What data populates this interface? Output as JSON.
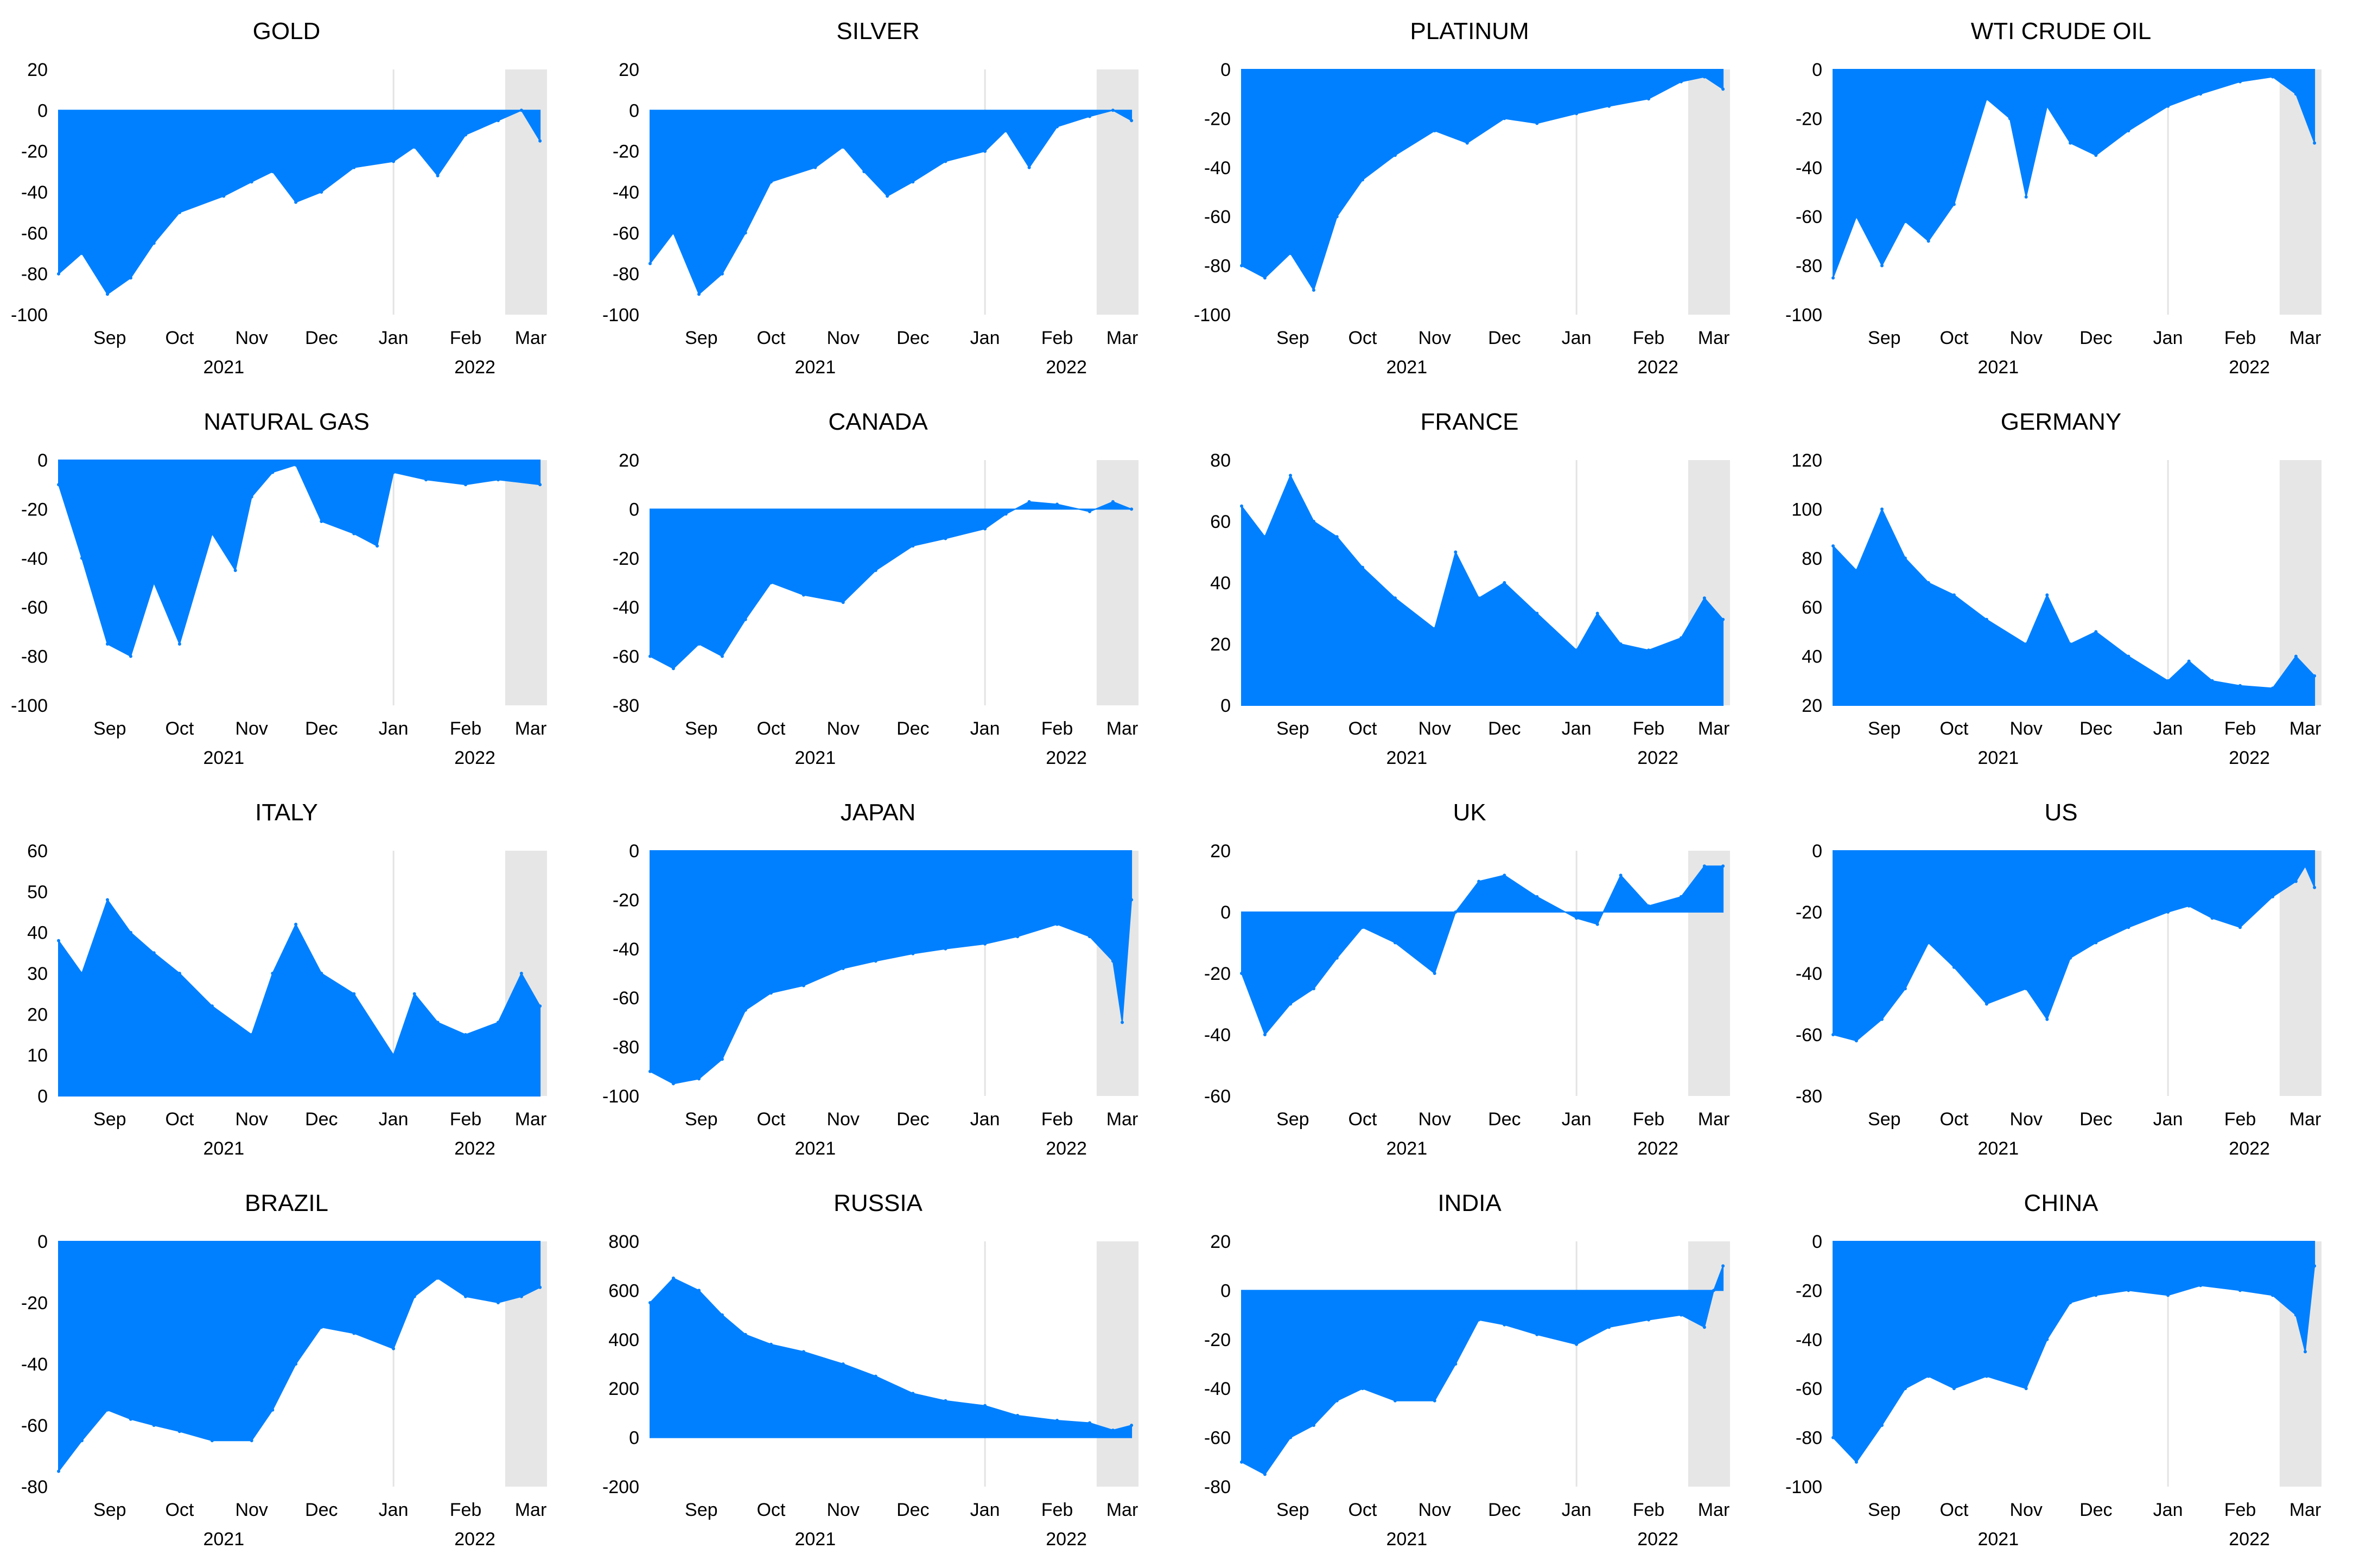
{
  "colors": {
    "area": "#0080FF",
    "shade": "#E6E6E6",
    "grid": "#E3E3E3"
  },
  "chart_data": [
    {
      "type": "area",
      "title": "GOLD",
      "ylim": [
        -100,
        20
      ],
      "yticks": [
        "20",
        "0",
        "-20",
        "-40",
        "-60",
        "-80",
        "-100"
      ],
      "months": [
        "Sep",
        "Oct",
        "Nov",
        "Dec",
        "Jan",
        "Feb",
        "Mar"
      ],
      "years": [
        "2021",
        "2022"
      ],
      "shaded_from": "2022-02-18",
      "x": [
        "2021-08-10",
        "2021-08-20",
        "2021-08-31",
        "2021-09-10",
        "2021-09-20",
        "2021-10-01",
        "2021-10-20",
        "2021-11-01",
        "2021-11-10",
        "2021-11-20",
        "2021-12-01",
        "2021-12-15",
        "2022-01-01",
        "2022-01-10",
        "2022-01-20",
        "2022-02-01",
        "2022-02-15",
        "2022-02-25",
        "2022-03-05"
      ],
      "y": [
        -80,
        -70,
        -90,
        -82,
        -65,
        -50,
        -42,
        -35,
        -30,
        -45,
        -40,
        -28,
        -25,
        -18,
        -32,
        -12,
        -5,
        0,
        -15
      ]
    },
    {
      "type": "area",
      "title": "SILVER",
      "ylim": [
        -100,
        20
      ],
      "yticks": [
        "20",
        "0",
        "-20",
        "-40",
        "-60",
        "-80",
        "-100"
      ],
      "months": [
        "Sep",
        "Oct",
        "Nov",
        "Dec",
        "Jan",
        "Feb",
        "Mar"
      ],
      "years": [
        "2021",
        "2022"
      ],
      "shaded_from": "2022-02-18",
      "x": [
        "2021-08-10",
        "2021-08-20",
        "2021-08-31",
        "2021-09-10",
        "2021-09-20",
        "2021-10-01",
        "2021-10-20",
        "2021-11-01",
        "2021-11-10",
        "2021-11-20",
        "2021-12-01",
        "2021-12-15",
        "2022-01-01",
        "2022-01-10",
        "2022-01-20",
        "2022-02-01",
        "2022-02-15",
        "2022-02-25",
        "2022-03-05"
      ],
      "y": [
        -75,
        -60,
        -90,
        -80,
        -60,
        -35,
        -28,
        -18,
        -30,
        -42,
        -35,
        -25,
        -20,
        -10,
        -28,
        -8,
        -3,
        0,
        -5
      ]
    },
    {
      "type": "area",
      "title": "PLATINUM",
      "ylim": [
        -100,
        0
      ],
      "yticks": [
        "0",
        "-20",
        "-40",
        "-60",
        "-80",
        "-100"
      ],
      "months": [
        "Sep",
        "Oct",
        "Nov",
        "Dec",
        "Jan",
        "Feb",
        "Mar"
      ],
      "years": [
        "2021",
        "2022"
      ],
      "shaded_from": "2022-02-18",
      "x": [
        "2021-08-10",
        "2021-08-20",
        "2021-08-31",
        "2021-09-10",
        "2021-09-20",
        "2021-10-01",
        "2021-10-15",
        "2021-11-01",
        "2021-11-15",
        "2021-12-01",
        "2021-12-15",
        "2022-01-01",
        "2022-01-15",
        "2022-02-01",
        "2022-02-15",
        "2022-02-25",
        "2022-03-05"
      ],
      "y": [
        -80,
        -85,
        -75,
        -90,
        -60,
        -45,
        -35,
        -25,
        -30,
        -20,
        -22,
        -18,
        -15,
        -12,
        -5,
        -3,
        -8
      ]
    },
    {
      "type": "area",
      "title": "WTI CRUDE OIL",
      "ylim": [
        -100,
        0
      ],
      "yticks": [
        "0",
        "-20",
        "-40",
        "-60",
        "-80",
        "-100"
      ],
      "months": [
        "Sep",
        "Oct",
        "Nov",
        "Dec",
        "Jan",
        "Feb",
        "Mar"
      ],
      "years": [
        "2021",
        "2022"
      ],
      "shaded_from": "2022-02-18",
      "x": [
        "2021-08-10",
        "2021-08-20",
        "2021-08-31",
        "2021-09-10",
        "2021-09-20",
        "2021-10-01",
        "2021-10-15",
        "2021-10-25",
        "2021-11-01",
        "2021-11-10",
        "2021-11-20",
        "2021-12-01",
        "2021-12-15",
        "2022-01-01",
        "2022-01-15",
        "2022-02-01",
        "2022-02-15",
        "2022-02-25",
        "2022-03-05"
      ],
      "y": [
        -85,
        -60,
        -80,
        -62,
        -70,
        -55,
        -12,
        -20,
        -52,
        -15,
        -30,
        -35,
        -25,
        -15,
        -10,
        -5,
        -3,
        -10,
        -30
      ]
    },
    {
      "type": "area",
      "title": "NATURAL GAS",
      "ylim": [
        -100,
        0
      ],
      "yticks": [
        "0",
        "-20",
        "-40",
        "-60",
        "-80",
        "-100"
      ],
      "months": [
        "Sep",
        "Oct",
        "Nov",
        "Dec",
        "Jan",
        "Feb",
        "Mar"
      ],
      "years": [
        "2021",
        "2022"
      ],
      "shaded_from": "2022-02-18",
      "x": [
        "2021-08-10",
        "2021-08-20",
        "2021-08-31",
        "2021-09-10",
        "2021-09-20",
        "2021-10-01",
        "2021-10-15",
        "2021-10-25",
        "2021-11-01",
        "2021-11-10",
        "2021-11-20",
        "2021-12-01",
        "2021-12-15",
        "2021-12-25",
        "2022-01-01",
        "2022-01-15",
        "2022-02-01",
        "2022-02-15",
        "2022-03-05"
      ],
      "y": [
        -10,
        -40,
        -75,
        -80,
        -50,
        -75,
        -30,
        -45,
        -15,
        -5,
        -2,
        -25,
        -30,
        -35,
        -5,
        -8,
        -10,
        -8,
        -10
      ]
    },
    {
      "type": "area",
      "title": "CANADA",
      "ylim": [
        -80,
        20
      ],
      "yticks": [
        "20",
        "0",
        "-20",
        "-40",
        "-60",
        "-80"
      ],
      "months": [
        "Sep",
        "Oct",
        "Nov",
        "Dec",
        "Jan",
        "Feb",
        "Mar"
      ],
      "years": [
        "2021",
        "2022"
      ],
      "shaded_from": "2022-02-18",
      "x": [
        "2021-08-10",
        "2021-08-20",
        "2021-08-31",
        "2021-09-10",
        "2021-09-20",
        "2021-10-01",
        "2021-10-15",
        "2021-11-01",
        "2021-11-15",
        "2021-12-01",
        "2021-12-15",
        "2022-01-01",
        "2022-01-10",
        "2022-01-20",
        "2022-02-01",
        "2022-02-15",
        "2022-02-25",
        "2022-03-05"
      ],
      "y": [
        -60,
        -65,
        -55,
        -60,
        -45,
        -30,
        -35,
        -38,
        -25,
        -15,
        -12,
        -8,
        -2,
        3,
        2,
        -1,
        3,
        0
      ]
    },
    {
      "type": "area",
      "title": "FRANCE",
      "ylim": [
        0,
        80
      ],
      "yticks": [
        "80",
        "60",
        "40",
        "20",
        "0"
      ],
      "months": [
        "Sep",
        "Oct",
        "Nov",
        "Dec",
        "Jan",
        "Feb",
        "Mar"
      ],
      "years": [
        "2021",
        "2022"
      ],
      "shaded_from": "2022-02-18",
      "x": [
        "2021-08-10",
        "2021-08-20",
        "2021-08-31",
        "2021-09-10",
        "2021-09-20",
        "2021-10-01",
        "2021-10-15",
        "2021-11-01",
        "2021-11-10",
        "2021-11-20",
        "2021-12-01",
        "2021-12-15",
        "2022-01-01",
        "2022-01-10",
        "2022-01-20",
        "2022-02-01",
        "2022-02-15",
        "2022-02-25",
        "2022-03-05"
      ],
      "y": [
        65,
        55,
        75,
        60,
        55,
        45,
        35,
        25,
        50,
        35,
        40,
        30,
        18,
        30,
        20,
        18,
        22,
        35,
        28
      ]
    },
    {
      "type": "area",
      "title": "GERMANY",
      "ylim": [
        20,
        120
      ],
      "yticks": [
        "120",
        "100",
        "80",
        "60",
        "40",
        "20"
      ],
      "months": [
        "Sep",
        "Oct",
        "Nov",
        "Dec",
        "Jan",
        "Feb",
        "Mar"
      ],
      "years": [
        "2021",
        "2022"
      ],
      "shaded_from": "2022-02-18",
      "x": [
        "2021-08-10",
        "2021-08-20",
        "2021-08-31",
        "2021-09-10",
        "2021-09-20",
        "2021-10-01",
        "2021-10-15",
        "2021-11-01",
        "2021-11-10",
        "2021-11-20",
        "2021-12-01",
        "2021-12-15",
        "2022-01-01",
        "2022-01-10",
        "2022-01-20",
        "2022-02-01",
        "2022-02-15",
        "2022-02-25",
        "2022-03-05"
      ],
      "y": [
        85,
        75,
        100,
        80,
        70,
        65,
        55,
        45,
        65,
        45,
        50,
        40,
        30,
        38,
        30,
        28,
        27,
        40,
        32
      ]
    },
    {
      "type": "area",
      "title": "ITALY",
      "ylim": [
        0,
        60
      ],
      "yticks": [
        "60",
        "50",
        "40",
        "30",
        "20",
        "10",
        "0"
      ],
      "months": [
        "Sep",
        "Oct",
        "Nov",
        "Dec",
        "Jan",
        "Feb",
        "Mar"
      ],
      "years": [
        "2021",
        "2022"
      ],
      "shaded_from": "2022-02-18",
      "x": [
        "2021-08-10",
        "2021-08-20",
        "2021-08-31",
        "2021-09-10",
        "2021-09-20",
        "2021-10-01",
        "2021-10-15",
        "2021-11-01",
        "2021-11-10",
        "2021-11-20",
        "2021-12-01",
        "2021-12-15",
        "2022-01-01",
        "2022-01-10",
        "2022-01-20",
        "2022-02-01",
        "2022-02-15",
        "2022-02-25",
        "2022-03-05"
      ],
      "y": [
        38,
        30,
        48,
        40,
        35,
        30,
        22,
        15,
        30,
        42,
        30,
        25,
        10,
        25,
        18,
        15,
        18,
        30,
        22
      ]
    },
    {
      "type": "area",
      "title": "JAPAN",
      "ylim": [
        -100,
        0
      ],
      "yticks": [
        "0",
        "-20",
        "-40",
        "-60",
        "-80",
        "-100"
      ],
      "months": [
        "Sep",
        "Oct",
        "Nov",
        "Dec",
        "Jan",
        "Feb",
        "Mar"
      ],
      "years": [
        "2021",
        "2022"
      ],
      "shaded_from": "2022-02-18",
      "x": [
        "2021-08-10",
        "2021-08-20",
        "2021-08-31",
        "2021-09-10",
        "2021-09-20",
        "2021-10-01",
        "2021-10-15",
        "2021-11-01",
        "2021-11-15",
        "2021-12-01",
        "2021-12-15",
        "2022-01-01",
        "2022-01-15",
        "2022-02-01",
        "2022-02-15",
        "2022-02-25",
        "2022-03-01",
        "2022-03-05"
      ],
      "y": [
        -90,
        -95,
        -93,
        -85,
        -65,
        -58,
        -55,
        -48,
        -45,
        -42,
        -40,
        -38,
        -35,
        -30,
        -35,
        -45,
        -70,
        -20
      ]
    },
    {
      "type": "area",
      "title": "UK",
      "ylim": [
        -60,
        20
      ],
      "yticks": [
        "20",
        "0",
        "-20",
        "-40",
        "-60"
      ],
      "months": [
        "Sep",
        "Oct",
        "Nov",
        "Dec",
        "Jan",
        "Feb",
        "Mar"
      ],
      "years": [
        "2021",
        "2022"
      ],
      "shaded_from": "2022-02-18",
      "x": [
        "2021-08-10",
        "2021-08-20",
        "2021-08-31",
        "2021-09-10",
        "2021-09-20",
        "2021-10-01",
        "2021-10-15",
        "2021-11-01",
        "2021-11-10",
        "2021-11-20",
        "2021-12-01",
        "2021-12-15",
        "2022-01-01",
        "2022-01-10",
        "2022-01-20",
        "2022-02-01",
        "2022-02-15",
        "2022-02-25",
        "2022-03-05"
      ],
      "y": [
        -20,
        -40,
        -30,
        -25,
        -15,
        -5,
        -10,
        -20,
        0,
        10,
        12,
        5,
        -2,
        -4,
        12,
        2,
        5,
        15,
        15
      ]
    },
    {
      "type": "area",
      "title": "US",
      "ylim": [
        -80,
        0
      ],
      "yticks": [
        "0",
        "-20",
        "-40",
        "-60",
        "-80"
      ],
      "months": [
        "Sep",
        "Oct",
        "Nov",
        "Dec",
        "Jan",
        "Feb",
        "Mar"
      ],
      "years": [
        "2021",
        "2022"
      ],
      "shaded_from": "2022-02-18",
      "x": [
        "2021-08-10",
        "2021-08-20",
        "2021-08-31",
        "2021-09-10",
        "2021-09-20",
        "2021-10-01",
        "2021-10-15",
        "2021-11-01",
        "2021-11-10",
        "2021-11-20",
        "2021-12-01",
        "2021-12-15",
        "2022-01-01",
        "2022-01-10",
        "2022-01-20",
        "2022-02-01",
        "2022-02-15",
        "2022-02-25",
        "2022-03-01",
        "2022-03-05"
      ],
      "y": [
        -60,
        -62,
        -55,
        -45,
        -30,
        -38,
        -50,
        -45,
        -55,
        -35,
        -30,
        -25,
        -20,
        -18,
        -22,
        -25,
        -15,
        -10,
        -5,
        -12
      ]
    },
    {
      "type": "area",
      "title": "BRAZIL",
      "ylim": [
        -80,
        0
      ],
      "yticks": [
        "0",
        "-20",
        "-40",
        "-60",
        "-80"
      ],
      "months": [
        "Sep",
        "Oct",
        "Nov",
        "Dec",
        "Jan",
        "Feb",
        "Mar"
      ],
      "years": [
        "2021",
        "2022"
      ],
      "shaded_from": "2022-02-18",
      "x": [
        "2021-08-10",
        "2021-08-20",
        "2021-08-31",
        "2021-09-10",
        "2021-09-20",
        "2021-10-01",
        "2021-10-15",
        "2021-11-01",
        "2021-11-10",
        "2021-11-20",
        "2021-12-01",
        "2021-12-15",
        "2022-01-01",
        "2022-01-10",
        "2022-01-20",
        "2022-02-01",
        "2022-02-15",
        "2022-02-25",
        "2022-03-05"
      ],
      "y": [
        -75,
        -65,
        -55,
        -58,
        -60,
        -62,
        -65,
        -65,
        -55,
        -40,
        -28,
        -30,
        -35,
        -18,
        -12,
        -18,
        -20,
        -18,
        -15
      ]
    },
    {
      "type": "area",
      "title": "RUSSIA",
      "ylim": [
        -200,
        800
      ],
      "yticks": [
        "800",
        "600",
        "400",
        "200",
        "0",
        "-200"
      ],
      "months": [
        "Sep",
        "Oct",
        "Nov",
        "Dec",
        "Jan",
        "Feb",
        "Mar"
      ],
      "years": [
        "2021",
        "2022"
      ],
      "shaded_from": "2022-02-18",
      "x": [
        "2021-08-10",
        "2021-08-20",
        "2021-08-31",
        "2021-09-10",
        "2021-09-20",
        "2021-10-01",
        "2021-10-15",
        "2021-11-01",
        "2021-11-15",
        "2021-12-01",
        "2021-12-15",
        "2022-01-01",
        "2022-01-15",
        "2022-02-01",
        "2022-02-15",
        "2022-02-25",
        "2022-03-05"
      ],
      "y": [
        550,
        650,
        600,
        500,
        420,
        380,
        350,
        300,
        250,
        180,
        150,
        130,
        90,
        70,
        60,
        30,
        50
      ]
    },
    {
      "type": "area",
      "title": "INDIA",
      "ylim": [
        -80,
        20
      ],
      "yticks": [
        "20",
        "0",
        "-20",
        "-40",
        "-60",
        "-80"
      ],
      "months": [
        "Sep",
        "Oct",
        "Nov",
        "Dec",
        "Jan",
        "Feb",
        "Mar"
      ],
      "years": [
        "2021",
        "2022"
      ],
      "shaded_from": "2022-02-18",
      "x": [
        "2021-08-10",
        "2021-08-20",
        "2021-08-31",
        "2021-09-10",
        "2021-09-20",
        "2021-10-01",
        "2021-10-15",
        "2021-11-01",
        "2021-11-10",
        "2021-11-20",
        "2021-12-01",
        "2021-12-15",
        "2022-01-01",
        "2022-01-15",
        "2022-02-01",
        "2022-02-15",
        "2022-02-25",
        "2022-03-01",
        "2022-03-05"
      ],
      "y": [
        -70,
        -75,
        -60,
        -55,
        -45,
        -40,
        -45,
        -45,
        -30,
        -12,
        -14,
        -18,
        -22,
        -15,
        -12,
        -10,
        -15,
        0,
        10
      ]
    },
    {
      "type": "area",
      "title": "CHINA",
      "ylim": [
        -100,
        0
      ],
      "yticks": [
        "0",
        "-20",
        "-40",
        "-60",
        "-80",
        "-100"
      ],
      "months": [
        "Sep",
        "Oct",
        "Nov",
        "Dec",
        "Jan",
        "Feb",
        "Mar"
      ],
      "years": [
        "2021",
        "2022"
      ],
      "shaded_from": "2022-02-18",
      "x": [
        "2021-08-10",
        "2021-08-20",
        "2021-08-31",
        "2021-09-10",
        "2021-09-20",
        "2021-10-01",
        "2021-10-15",
        "2021-11-01",
        "2021-11-10",
        "2021-11-20",
        "2021-12-01",
        "2021-12-15",
        "2022-01-01",
        "2022-01-15",
        "2022-02-01",
        "2022-02-15",
        "2022-02-25",
        "2022-03-01",
        "2022-03-05"
      ],
      "y": [
        -80,
        -90,
        -75,
        -60,
        -55,
        -60,
        -55,
        -60,
        -40,
        -25,
        -22,
        -20,
        -22,
        -18,
        -20,
        -22,
        -30,
        -45,
        -10
      ]
    }
  ]
}
